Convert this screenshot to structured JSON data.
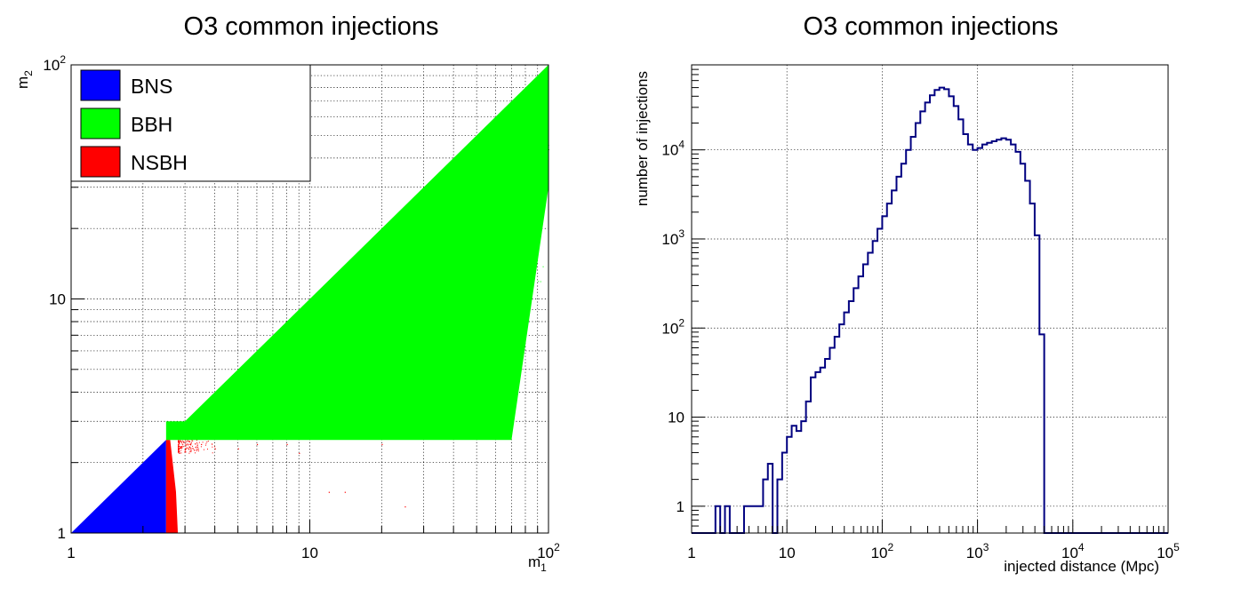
{
  "chart_data": [
    {
      "type": "scatter",
      "title": "O3 common injections",
      "xlabel": "m",
      "xlabel_sub": "1",
      "ylabel": "m",
      "ylabel_sub": "2",
      "x_scale": "log",
      "y_scale": "log",
      "xlim": [
        1,
        100
      ],
      "ylim": [
        1,
        100
      ],
      "grid": true,
      "legend_position": "top-left",
      "x_ticks": [
        {
          "base": "1",
          "exp": ""
        },
        {
          "base": "10",
          "exp": ""
        },
        {
          "base": "10",
          "exp": "2"
        }
      ],
      "y_ticks": [
        {
          "base": "1",
          "exp": ""
        },
        {
          "base": "10",
          "exp": ""
        },
        {
          "base": "10",
          "exp": "2"
        }
      ],
      "series": [
        {
          "name": "BNS",
          "color": "#0000ff",
          "region": {
            "x_range": [
              1,
              2.5
            ],
            "y_range": [
              1,
              2.5
            ],
            "constraint": "m2 <= m1"
          }
        },
        {
          "name": "BBH",
          "color": "#00ff00",
          "region": {
            "x_range": [
              2.5,
              100
            ],
            "y_range": [
              2.5,
              100
            ],
            "constraint": "m2 <= m1"
          },
          "dense_edge": [
            [
              2.5,
              2.5
            ],
            [
              100,
              100
            ],
            [
              100,
              30
            ],
            [
              70,
              2.5
            ]
          ],
          "band": {
            "x_range": [
              2.5,
              70
            ],
            "y_range": [
              2.5,
              3
            ]
          }
        },
        {
          "name": "NSBH",
          "color": "#ff0000",
          "region": {
            "x_range": [
              2.5,
              2.8
            ],
            "y_range": [
              1,
              2.5
            ]
          },
          "sparse_points": [
            [
              3.5,
              2.4
            ],
            [
              4,
              2.3
            ],
            [
              5,
              2.3
            ],
            [
              6,
              2.4
            ],
            [
              8,
              2.4
            ],
            [
              9,
              2.2
            ],
            [
              12,
              1.5
            ],
            [
              14,
              1.5
            ],
            [
              20,
              2.4
            ],
            [
              25,
              1.3
            ]
          ]
        }
      ]
    },
    {
      "type": "line",
      "step": true,
      "title": "O3 common injections",
      "xlabel": "injected distance (Mpc)",
      "ylabel": "number of injections",
      "x_scale": "log",
      "y_scale": "log",
      "xlim": [
        1,
        100000
      ],
      "ylim": [
        0.5,
        90000
      ],
      "grid": true,
      "color": "#000080",
      "x_ticks": [
        {
          "base": "1",
          "exp": ""
        },
        {
          "base": "10",
          "exp": ""
        },
        {
          "base": "10",
          "exp": "2"
        },
        {
          "base": "10",
          "exp": "3"
        },
        {
          "base": "10",
          "exp": "4"
        },
        {
          "base": "10",
          "exp": "5"
        }
      ],
      "y_ticks": [
        {
          "base": "1",
          "exp": ""
        },
        {
          "base": "10",
          "exp": ""
        },
        {
          "base": "10",
          "exp": "2"
        },
        {
          "base": "10",
          "exp": "3"
        },
        {
          "base": "10",
          "exp": "4"
        }
      ],
      "bins_log10_start": 0,
      "bins_log10_width": 0.05,
      "counts": [
        0,
        0,
        0,
        0,
        0,
        1,
        0,
        1,
        0,
        0,
        0,
        1,
        1,
        1,
        1,
        2,
        3,
        0,
        2,
        4,
        6,
        8,
        7,
        9,
        15,
        28,
        32,
        36,
        45,
        60,
        80,
        110,
        150,
        200,
        280,
        380,
        520,
        700,
        950,
        1300,
        1800,
        2500,
        3500,
        5000,
        7000,
        10000,
        14000,
        20000,
        27000,
        34000,
        41000,
        47000,
        50000,
        48000,
        40000,
        31000,
        22000,
        15000,
        11500,
        10000,
        10500,
        11500,
        12000,
        12500,
        13000,
        13500,
        13000,
        11500,
        9500,
        7000,
        4500,
        2500,
        1100,
        85,
        0,
        0,
        0,
        0,
        0,
        0,
        0,
        0,
        0,
        0,
        0,
        0,
        0,
        0,
        0,
        0,
        0,
        0,
        0,
        0,
        0,
        0,
        0,
        0,
        0,
        0
      ]
    }
  ]
}
